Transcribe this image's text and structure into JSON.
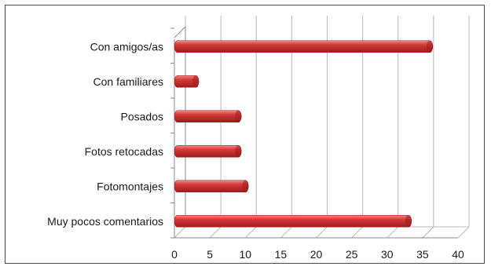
{
  "chart_data": {
    "type": "bar",
    "orientation": "horizontal",
    "style": "3d-cylinder",
    "categories": [
      "Con amigos/as",
      "Con familiares",
      "Posados",
      "Fotos retocadas",
      "Fotomontajes",
      "Muy pocos comentarios"
    ],
    "values": [
      36,
      3,
      9,
      9,
      10,
      33
    ],
    "xlim": [
      0,
      40
    ],
    "xticks": [
      "0",
      "5",
      "10",
      "15",
      "20",
      "25",
      "30",
      "35",
      "40"
    ],
    "grid": true,
    "legend": "none",
    "bar_color": "#d33a3a",
    "bar_highlight": "#f08a84",
    "bar_shadow": "#9e1c1c",
    "grid_color": "#b8b8b8"
  }
}
